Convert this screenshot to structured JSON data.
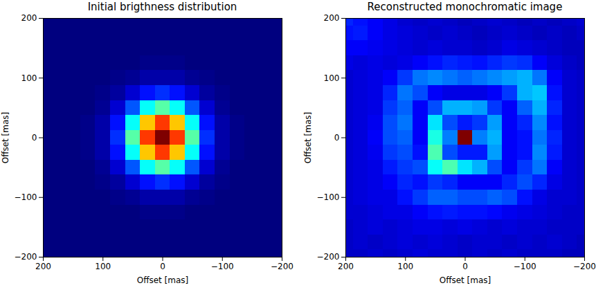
{
  "chart_data": [
    {
      "type": "heatmap",
      "title": "Initial brigthness distribution",
      "x_label": "Offset [mas]",
      "y_label": "Offset [mas]",
      "x": [
        200,
        175,
        150,
        125,
        100,
        75,
        50,
        25,
        0,
        -25,
        -50,
        -75,
        -100,
        -125,
        -150,
        -175,
        -200
      ],
      "y": [
        200,
        175,
        150,
        125,
        100,
        75,
        50,
        25,
        0,
        -25,
        -50,
        -75,
        -100,
        -125,
        -150,
        -175,
        -200
      ],
      "values": [
        [
          0,
          0,
          0,
          0,
          0,
          0,
          0,
          0,
          0,
          0,
          0,
          0,
          0,
          0,
          0,
          0,
          0
        ],
        [
          0,
          0,
          0,
          0,
          0,
          0,
          0,
          0,
          0,
          0,
          0,
          0,
          0,
          0,
          0,
          0,
          0
        ],
        [
          0,
          0,
          0,
          0,
          0,
          0,
          0,
          0,
          0,
          0,
          0,
          0,
          0,
          0,
          0,
          0,
          0
        ],
        [
          0,
          0,
          0,
          0,
          0,
          0,
          0,
          0.01,
          0.01,
          0.01,
          0,
          0,
          0,
          0,
          0,
          0,
          0
        ],
        [
          0,
          0,
          0,
          0,
          0,
          0.01,
          0.02,
          0.04,
          0.04,
          0.04,
          0.02,
          0.01,
          0,
          0,
          0,
          0,
          0
        ],
        [
          0,
          0,
          0,
          0,
          0.01,
          0.03,
          0.08,
          0.14,
          0.17,
          0.14,
          0.08,
          0.03,
          0.01,
          0,
          0,
          0,
          0
        ],
        [
          0,
          0,
          0,
          0,
          0.02,
          0.08,
          0.21,
          0.38,
          0.46,
          0.38,
          0.21,
          0.08,
          0.02,
          0,
          0,
          0,
          0
        ],
        [
          0,
          0,
          0,
          0.01,
          0.04,
          0.14,
          0.38,
          0.68,
          0.82,
          0.68,
          0.38,
          0.14,
          0.04,
          0.01,
          0,
          0,
          0
        ],
        [
          0,
          0,
          0,
          0.01,
          0.04,
          0.17,
          0.46,
          0.82,
          1,
          0.82,
          0.46,
          0.17,
          0.04,
          0.01,
          0,
          0,
          0
        ],
        [
          0,
          0,
          0,
          0.01,
          0.04,
          0.14,
          0.38,
          0.68,
          0.82,
          0.68,
          0.38,
          0.14,
          0.04,
          0.01,
          0,
          0,
          0
        ],
        [
          0,
          0,
          0,
          0,
          0.02,
          0.08,
          0.21,
          0.38,
          0.46,
          0.38,
          0.21,
          0.08,
          0.02,
          0,
          0,
          0,
          0
        ],
        [
          0,
          0,
          0,
          0,
          0.01,
          0.03,
          0.08,
          0.14,
          0.17,
          0.14,
          0.08,
          0.03,
          0.01,
          0,
          0,
          0,
          0
        ],
        [
          0,
          0,
          0,
          0,
          0,
          0.01,
          0.02,
          0.04,
          0.04,
          0.04,
          0.02,
          0.01,
          0,
          0,
          0,
          0,
          0
        ],
        [
          0,
          0,
          0,
          0,
          0,
          0,
          0,
          0.01,
          0.01,
          0.01,
          0,
          0,
          0,
          0,
          0,
          0,
          0
        ],
        [
          0,
          0,
          0,
          0,
          0,
          0,
          0,
          0,
          0,
          0,
          0,
          0,
          0,
          0,
          0,
          0,
          0
        ],
        [
          0,
          0,
          0,
          0,
          0,
          0,
          0,
          0,
          0,
          0,
          0,
          0,
          0,
          0,
          0,
          0,
          0
        ],
        [
          0,
          0,
          0,
          0,
          0,
          0,
          0,
          0,
          0,
          0,
          0,
          0,
          0,
          0,
          0,
          0,
          0
        ]
      ],
      "xlim": [
        200,
        -200
      ],
      "ylim": [
        -200,
        200
      ],
      "xticks": [
        200,
        100,
        0,
        -100,
        -200
      ],
      "yticks": [
        -200,
        -100,
        0,
        100,
        200
      ]
    },
    {
      "type": "heatmap",
      "title": "Reconstructed monochromatic image",
      "x_label": "Offset [mas]",
      "y_label": "Offset [mas]",
      "x": [
        200,
        175,
        150,
        125,
        100,
        75,
        50,
        25,
        0,
        -25,
        -50,
        -75,
        -100,
        -125,
        -150,
        -175,
        -200
      ],
      "y": [
        200,
        175,
        150,
        125,
        100,
        75,
        50,
        25,
        0,
        -25,
        -50,
        -75,
        -100,
        -125,
        -150,
        -175,
        -200
      ],
      "values": [
        [
          0.16,
          0.14,
          0.12,
          0.1,
          0.08,
          0.07,
          0.08,
          0.07,
          0.06,
          0.07,
          0.08,
          0.07,
          0.06,
          0.07,
          0.06,
          0.07,
          0.08
        ],
        [
          0.14,
          0.15,
          0.12,
          0.1,
          0.09,
          0.08,
          0.07,
          0.08,
          0.07,
          0.06,
          0.07,
          0.08,
          0.07,
          0.06,
          0.07,
          0.06,
          0.07
        ],
        [
          0.12,
          0.12,
          0.11,
          0.1,
          0.09,
          0.08,
          0.09,
          0.08,
          0.08,
          0.07,
          0.08,
          0.1,
          0.09,
          0.08,
          0.07,
          0.06,
          0.06
        ],
        [
          0.1,
          0.09,
          0.1,
          0.09,
          0.1,
          0.12,
          0.14,
          0.16,
          0.15,
          0.14,
          0.16,
          0.18,
          0.17,
          0.12,
          0.09,
          0.07,
          0.06
        ],
        [
          0.08,
          0.09,
          0.1,
          0.12,
          0.18,
          0.24,
          0.26,
          0.24,
          0.22,
          0.24,
          0.26,
          0.28,
          0.3,
          0.24,
          0.12,
          0.08,
          0.07
        ],
        [
          0.08,
          0.09,
          0.1,
          0.16,
          0.24,
          0.2,
          0.12,
          0.1,
          0.1,
          0.1,
          0.12,
          0.18,
          0.3,
          0.32,
          0.14,
          0.08,
          0.07
        ],
        [
          0.08,
          0.09,
          0.1,
          0.18,
          0.22,
          0.12,
          0.2,
          0.3,
          0.3,
          0.28,
          0.18,
          0.12,
          0.22,
          0.3,
          0.16,
          0.08,
          0.07
        ],
        [
          0.08,
          0.09,
          0.11,
          0.2,
          0.24,
          0.12,
          0.35,
          0.2,
          0.15,
          0.18,
          0.28,
          0.12,
          0.16,
          0.26,
          0.14,
          0.08,
          0.07
        ],
        [
          0.08,
          0.09,
          0.12,
          0.2,
          0.22,
          0.12,
          0.4,
          0.25,
          1,
          0.25,
          0.3,
          0.12,
          0.14,
          0.24,
          0.16,
          0.08,
          0.07
        ],
        [
          0.08,
          0.09,
          0.11,
          0.18,
          0.2,
          0.14,
          0.45,
          0.2,
          0.15,
          0.15,
          0.28,
          0.12,
          0.14,
          0.26,
          0.15,
          0.08,
          0.07
        ],
        [
          0.08,
          0.09,
          0.1,
          0.15,
          0.18,
          0.2,
          0.38,
          0.45,
          0.35,
          0.3,
          0.2,
          0.12,
          0.18,
          0.24,
          0.12,
          0.08,
          0.07
        ],
        [
          0.08,
          0.09,
          0.1,
          0.12,
          0.16,
          0.14,
          0.18,
          0.16,
          0.12,
          0.12,
          0.12,
          0.16,
          0.2,
          0.16,
          0.1,
          0.08,
          0.07
        ],
        [
          0.08,
          0.09,
          0.1,
          0.1,
          0.14,
          0.18,
          0.22,
          0.22,
          0.2,
          0.2,
          0.22,
          0.2,
          0.14,
          0.1,
          0.08,
          0.08,
          0.07
        ],
        [
          0.08,
          0.08,
          0.09,
          0.1,
          0.1,
          0.12,
          0.14,
          0.15,
          0.14,
          0.14,
          0.13,
          0.11,
          0.1,
          0.09,
          0.08,
          0.07,
          0.07
        ],
        [
          0.07,
          0.08,
          0.09,
          0.08,
          0.09,
          0.1,
          0.1,
          0.09,
          0.1,
          0.09,
          0.08,
          0.09,
          0.08,
          0.08,
          0.07,
          0.07,
          0.07
        ],
        [
          0.07,
          0.08,
          0.07,
          0.08,
          0.09,
          0.08,
          0.09,
          0.08,
          0.07,
          0.08,
          0.08,
          0.07,
          0.08,
          0.07,
          0.08,
          0.07,
          0.06
        ],
        [
          0.07,
          0.07,
          0.08,
          0.07,
          0.08,
          0.09,
          0.08,
          0.08,
          0.07,
          0.08,
          0.07,
          0.08,
          0.07,
          0.07,
          0.07,
          0.06,
          0.06
        ]
      ],
      "xlim": [
        200,
        -200
      ],
      "ylim": [
        -200,
        200
      ],
      "xticks": [
        200,
        100,
        0,
        -100,
        -200
      ],
      "yticks": [
        -200,
        -100,
        0,
        100,
        200
      ]
    }
  ]
}
